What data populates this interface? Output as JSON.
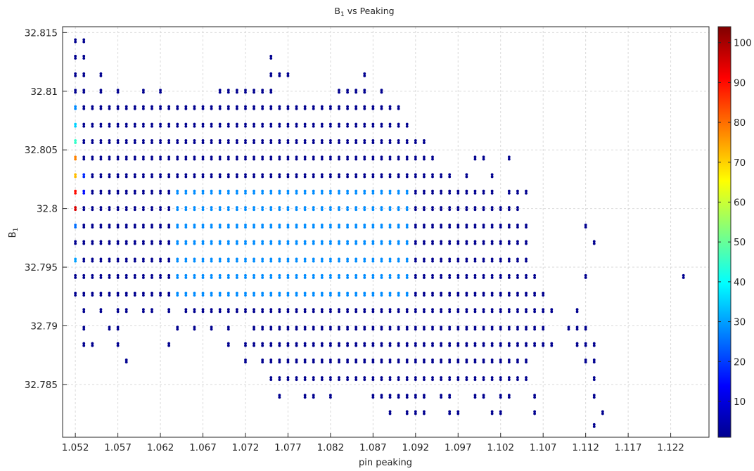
{
  "chart_data": {
    "type": "scatter",
    "title": "B",
    "title_sub": "1",
    "title_suffix": " vs Peaking",
    "xlabel": "pin peaking",
    "ylabel": "B",
    "ylabel_sub": "1",
    "xlim": [
      1.0505,
      1.1265
    ],
    "ylim": [
      32.7805,
      32.8155
    ],
    "xticks": [
      1.052,
      1.057,
      1.062,
      1.067,
      1.072,
      1.077,
      1.082,
      1.087,
      1.092,
      1.097,
      1.102,
      1.107,
      1.112,
      1.117,
      1.122
    ],
    "xtick_labels": [
      "1.052",
      "1.057",
      "1.062",
      "1.067",
      "1.072",
      "1.077",
      "1.082",
      "1.087",
      "1.092",
      "1.097",
      "1.102",
      "1.107",
      "1.112",
      "1.117",
      "1.122"
    ],
    "yticks": [
      32.785,
      32.79,
      32.795,
      32.8,
      32.805,
      32.81,
      32.815
    ],
    "ytick_labels": [
      "32.785",
      "32.79",
      "32.795",
      "32.8",
      "32.805",
      "32.81",
      "32.815"
    ],
    "grid": true,
    "colormap": "jet",
    "colorbar": {
      "range": [
        1,
        104
      ],
      "ticks": [
        10,
        20,
        30,
        40,
        50,
        60,
        70,
        80,
        90,
        100
      ],
      "tick_labels": [
        "10",
        "20",
        "30",
        "40",
        "50",
        "60",
        "70",
        "80",
        "90",
        "100"
      ]
    },
    "point_color_default": "#00008f",
    "series": [
      {
        "y_levels": [
          32.7815,
          32.7826,
          32.784,
          32.7855,
          32.787,
          32.7884,
          32.7898,
          32.7913,
          32.7927,
          32.7942,
          32.7956,
          32.7971,
          32.7985,
          32.8,
          32.8014,
          32.8028,
          32.8043,
          32.8057,
          32.8071,
          32.8086,
          32.81,
          32.8114,
          32.8129,
          32.8143
        ],
        "rows": [
          {
            "y": 32.8143,
            "x": [
              1.052,
              1.053
            ]
          },
          {
            "y": 32.8129,
            "x": [
              1.052,
              1.053,
              1.075
            ]
          },
          {
            "y": 32.8114,
            "x": [
              1.052,
              1.053,
              1.055,
              1.075,
              1.076,
              1.077,
              1.086
            ]
          },
          {
            "y": 32.81,
            "x": [
              1.052,
              1.053,
              1.055,
              1.057,
              1.06,
              1.062,
              1.069,
              1.07,
              1.071,
              1.072,
              1.073,
              1.074,
              1.075,
              1.083,
              1.084,
              1.085,
              1.086,
              1.088
            ]
          },
          {
            "y": 32.8086,
            "x_range": [
              1.052,
              1.09
            ]
          },
          {
            "y": 32.8071,
            "x_range": [
              1.052,
              1.091
            ]
          },
          {
            "y": 32.8057,
            "x_range": [
              1.052,
              1.093
            ]
          },
          {
            "y": 32.8043,
            "x_range": [
              1.052,
              1.094
            ],
            "extra_x": [
              1.099,
              1.1,
              1.103
            ]
          },
          {
            "y": 32.8028,
            "x_range": [
              1.052,
              1.095
            ],
            "extra_x": [
              1.096,
              1.098,
              1.101
            ]
          },
          {
            "y": 32.8014,
            "x_range": [
              1.052,
              1.1
            ],
            "extra_x": [
              1.101,
              1.103,
              1.104,
              1.105
            ]
          },
          {
            "y": 32.8,
            "x_range": [
              1.052,
              1.104
            ]
          },
          {
            "y": 32.7985,
            "x_range": [
              1.052,
              1.105
            ],
            "extra_x": [
              1.112
            ]
          },
          {
            "y": 32.7971,
            "x_range": [
              1.052,
              1.105
            ],
            "extra_x": [
              1.113
            ]
          },
          {
            "y": 32.7956,
            "x_range": [
              1.052,
              1.105
            ]
          },
          {
            "y": 32.7942,
            "x_range": [
              1.052,
              1.106
            ],
            "extra_x": [
              1.112,
              1.1235
            ]
          },
          {
            "y": 32.7927,
            "x_range": [
              1.052,
              1.107
            ]
          },
          {
            "y": 32.7913,
            "x": [
              1.053,
              1.055,
              1.057,
              1.058,
              1.06,
              1.061,
              1.063
            ],
            "x_range": [
              1.065,
              1.108
            ],
            "extra_x": [
              1.111
            ]
          },
          {
            "y": 32.7898,
            "x": [
              1.053,
              1.056,
              1.057,
              1.064,
              1.066,
              1.068,
              1.07
            ],
            "x_range": [
              1.073,
              1.107
            ],
            "extra_x": [
              1.11,
              1.111,
              1.112
            ]
          },
          {
            "y": 32.7884,
            "x": [
              1.053,
              1.054,
              1.057,
              1.063,
              1.07
            ],
            "x_range": [
              1.072,
              1.106
            ],
            "extra_x": [
              1.107,
              1.108,
              1.111,
              1.112,
              1.113
            ]
          },
          {
            "y": 32.787,
            "x": [
              1.058,
              1.072,
              1.074
            ],
            "x_range": [
              1.075,
              1.105
            ],
            "extra_x": [
              1.112,
              1.113
            ]
          },
          {
            "y": 32.7855,
            "x_range": [
              1.075,
              1.105
            ],
            "extra_x": [
              1.113
            ]
          },
          {
            "y": 32.784,
            "x": [
              1.076,
              1.079,
              1.08,
              1.082,
              1.087,
              1.088,
              1.089,
              1.09,
              1.091,
              1.092,
              1.093,
              1.095,
              1.096,
              1.099,
              1.1,
              1.102,
              1.103,
              1.106,
              1.113
            ]
          },
          {
            "y": 32.7826,
            "x": [
              1.089,
              1.091,
              1.092,
              1.093,
              1.096,
              1.097,
              1.101,
              1.102,
              1.106,
              1.114
            ]
          },
          {
            "y": 32.7815,
            "x": [
              1.113
            ]
          }
        ],
        "hot_spots": [
          {
            "x": 1.052,
            "y": 32.8071,
            "v": 35
          },
          {
            "x": 1.052,
            "y": 32.8057,
            "v": 45
          },
          {
            "x": 1.052,
            "y": 32.8043,
            "v": 78
          },
          {
            "x": 1.052,
            "y": 32.8028,
            "v": 72
          },
          {
            "x": 1.052,
            "y": 32.8014,
            "v": 90
          },
          {
            "x": 1.052,
            "y": 32.8,
            "v": 95
          },
          {
            "x": 1.052,
            "y": 32.8086,
            "v": 28
          },
          {
            "x": 1.052,
            "y": 32.7985,
            "v": 25
          },
          {
            "x": 1.052,
            "y": 32.7956,
            "v": 30
          },
          {
            "x": 1.053,
            "y": 32.8028,
            "v": 18
          },
          {
            "x": 1.053,
            "y": 32.8014,
            "v": 15
          }
        ],
        "warm_band": {
          "x_range": [
            1.064,
            1.091
          ],
          "y_range": [
            32.7927,
            32.8014
          ],
          "v": 28
        }
      }
    ]
  }
}
